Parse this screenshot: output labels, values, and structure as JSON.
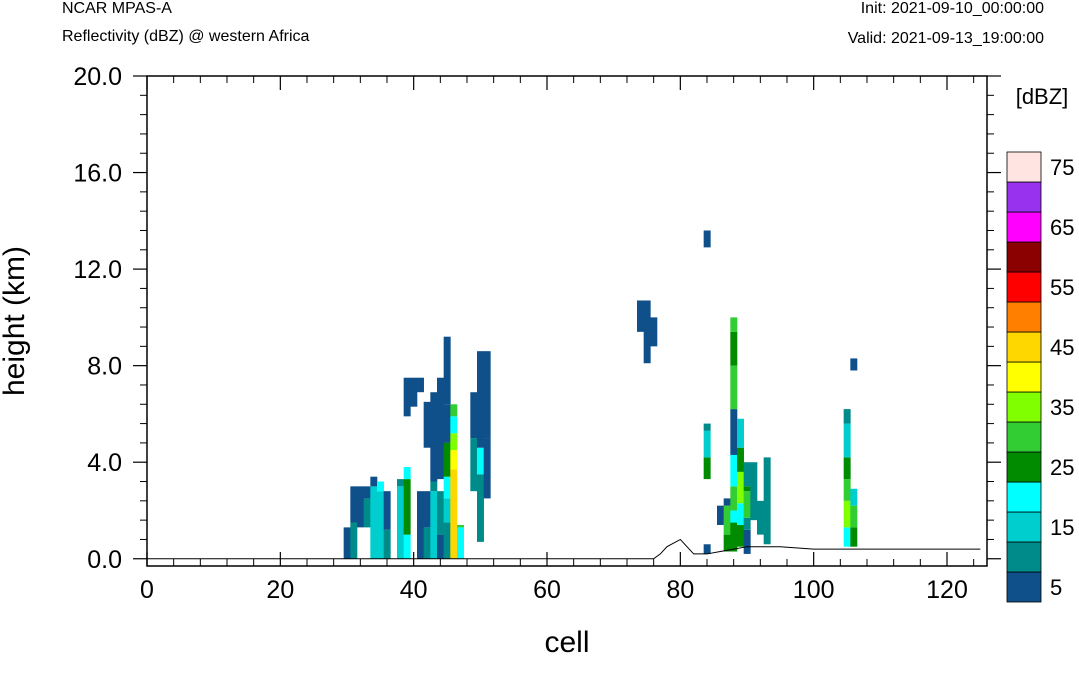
{
  "header": {
    "model": "NCAR MPAS-A",
    "field": "Reflectivity (dBZ) @ western Africa",
    "init": "Init: 2021-09-10_00:00:00",
    "valid": "Valid: 2021-09-13_19:00:00"
  },
  "chart_data": {
    "type": "heatmap",
    "title": "",
    "xlabel": "cell",
    "ylabel": "height (km)",
    "xlim": [
      0,
      126
    ],
    "ylim": [
      -0.3,
      20.0
    ],
    "x_ticks": [
      0,
      20,
      40,
      60,
      80,
      100,
      120
    ],
    "x_tick_labels": [
      "0",
      "20",
      "40",
      "60",
      "80",
      "100",
      "120"
    ],
    "y_ticks": [
      0,
      4,
      8,
      12,
      16,
      20
    ],
    "y_tick_labels": [
      "0.0",
      "4.0",
      "8.0",
      "12.0",
      "16.0",
      "20.0"
    ],
    "grid": false,
    "colorbar": {
      "units": "[dBZ]",
      "levels": [
        5,
        10,
        15,
        20,
        25,
        30,
        35,
        40,
        45,
        50,
        55,
        60,
        65,
        70,
        75
      ],
      "labels": [
        "5",
        "15",
        "25",
        "35",
        "45",
        "55",
        "65",
        "75"
      ],
      "colors": [
        "#0f4f8a",
        "#008b8b",
        "#00cdcd",
        "#00ffff",
        "#008b00",
        "#32cd32",
        "#7fff00",
        "#ffff00",
        "#ffd700",
        "#ff7f00",
        "#ff0000",
        "#8b0000",
        "#ff00ff",
        "#9932ee",
        "#ffe4e1"
      ]
    },
    "terrain": [
      [
        0,
        0
      ],
      [
        76,
        0
      ],
      [
        77,
        0.2
      ],
      [
        78,
        0.5
      ],
      [
        80,
        0.8
      ],
      [
        81,
        0.5
      ],
      [
        82,
        0.2
      ],
      [
        84,
        0.2
      ],
      [
        86,
        0.3
      ],
      [
        88,
        0.4
      ],
      [
        90,
        0.5
      ],
      [
        92,
        0.5
      ],
      [
        95,
        0.5
      ],
      [
        100,
        0.4
      ],
      [
        105,
        0.4
      ],
      [
        110,
        0.4
      ],
      [
        115,
        0.4
      ],
      [
        120,
        0.4
      ],
      [
        125,
        0.4
      ]
    ],
    "columns": [
      {
        "x": 30,
        "segments": [
          [
            0,
            1.3,
            5
          ]
        ]
      },
      {
        "x": 31,
        "segments": [
          [
            0,
            1.5,
            10
          ],
          [
            1.5,
            3.0,
            5
          ]
        ]
      },
      {
        "x": 32,
        "segments": [
          [
            1.3,
            3.0,
            5
          ]
        ]
      },
      {
        "x": 33,
        "segments": [
          [
            1.3,
            2.5,
            10
          ],
          [
            2.5,
            3.0,
            5
          ]
        ]
      },
      {
        "x": 34,
        "segments": [
          [
            0,
            3.0,
            15
          ],
          [
            3.0,
            3.4,
            5
          ]
        ]
      },
      {
        "x": 35,
        "segments": [
          [
            0,
            2.8,
            15
          ],
          [
            2.8,
            3.2,
            20
          ]
        ]
      },
      {
        "x": 36,
        "segments": [
          [
            0,
            1.2,
            10
          ],
          [
            1.2,
            2.8,
            5
          ]
        ]
      },
      {
        "x": 38,
        "segments": [
          [
            0,
            3.0,
            15
          ],
          [
            3.0,
            3.3,
            10
          ]
        ]
      },
      {
        "x": 39,
        "segments": [
          [
            0,
            1.0,
            20
          ],
          [
            1.0,
            3.3,
            25
          ],
          [
            3.3,
            3.8,
            20
          ],
          [
            5.9,
            7.5,
            5
          ]
        ]
      },
      {
        "x": 40,
        "segments": [
          [
            6.3,
            7.5,
            5
          ]
        ]
      },
      {
        "x": 41,
        "segments": [
          [
            0,
            2.8,
            5
          ],
          [
            6.9,
            7.5,
            5
          ]
        ]
      },
      {
        "x": 42,
        "segments": [
          [
            0,
            1.3,
            10
          ],
          [
            1.3,
            2.8,
            5
          ],
          [
            4.6,
            6.5,
            5
          ]
        ]
      },
      {
        "x": 43,
        "segments": [
          [
            0,
            2.8,
            15
          ],
          [
            2.8,
            3.2,
            10
          ],
          [
            3.2,
            6.9,
            5
          ]
        ]
      },
      {
        "x": 44,
        "segments": [
          [
            0,
            1.0,
            5
          ],
          [
            1.0,
            2.8,
            10
          ],
          [
            3.3,
            7.5,
            5
          ]
        ]
      },
      {
        "x": 45,
        "segments": [
          [
            0,
            1.5,
            10
          ],
          [
            1.5,
            2.5,
            15
          ],
          [
            2.5,
            3.4,
            20
          ],
          [
            3.4,
            4.8,
            25
          ],
          [
            4.8,
            6.4,
            5
          ],
          [
            6.4,
            9.2,
            5
          ]
        ]
      },
      {
        "x": 46,
        "segments": [
          [
            0,
            3.7,
            45
          ],
          [
            3.7,
            4.5,
            40
          ],
          [
            4.5,
            5.2,
            35
          ],
          [
            5.2,
            5.9,
            20
          ],
          [
            5.9,
            6.4,
            30
          ]
        ]
      },
      {
        "x": 47,
        "segments": [
          [
            0,
            1.3,
            20
          ],
          [
            1.3,
            1.4,
            30
          ]
        ]
      },
      {
        "x": 49,
        "segments": [
          [
            2.8,
            5.0,
            10
          ],
          [
            5.0,
            6.9,
            5
          ]
        ]
      },
      {
        "x": 50,
        "segments": [
          [
            0.7,
            3.5,
            10
          ],
          [
            3.5,
            4.6,
            20
          ],
          [
            4.6,
            8.6,
            5
          ]
        ]
      },
      {
        "x": 51,
        "segments": [
          [
            2.5,
            5.0,
            5
          ],
          [
            5.0,
            8.6,
            5
          ]
        ]
      },
      {
        "x": 74,
        "segments": [
          [
            9.4,
            10.7,
            5
          ]
        ]
      },
      {
        "x": 75,
        "segments": [
          [
            8.1,
            10.7,
            5
          ]
        ]
      },
      {
        "x": 76,
        "segments": [
          [
            8.8,
            10.0,
            5
          ]
        ]
      },
      {
        "x": 84,
        "segments": [
          [
            0.2,
            0.6,
            5
          ],
          [
            3.3,
            4.2,
            25
          ],
          [
            4.2,
            5.3,
            15
          ],
          [
            5.3,
            5.6,
            10
          ],
          [
            12.9,
            13.6,
            5
          ]
        ]
      },
      {
        "x": 86,
        "segments": [
          [
            1.4,
            2.2,
            5
          ]
        ]
      },
      {
        "x": 87,
        "segments": [
          [
            0.3,
            1.0,
            25
          ],
          [
            1.0,
            2.2,
            30
          ],
          [
            2.2,
            2.5,
            5
          ]
        ]
      },
      {
        "x": 88,
        "segments": [
          [
            0.3,
            1.5,
            25
          ],
          [
            1.5,
            2.0,
            20
          ],
          [
            2.0,
            3.0,
            30
          ],
          [
            3.0,
            4.3,
            20
          ],
          [
            4.3,
            6.2,
            5
          ],
          [
            6.2,
            8.0,
            30
          ],
          [
            8.0,
            9.4,
            25
          ],
          [
            9.4,
            10.0,
            30
          ]
        ]
      },
      {
        "x": 89,
        "segments": [
          [
            0.5,
            1.4,
            25
          ],
          [
            1.4,
            2.3,
            20
          ],
          [
            2.3,
            3.6,
            35
          ],
          [
            3.6,
            4.6,
            25
          ],
          [
            4.6,
            5.8,
            15
          ]
        ]
      },
      {
        "x": 90,
        "segments": [
          [
            0.2,
            1.2,
            5
          ],
          [
            1.2,
            1.7,
            10
          ],
          [
            1.7,
            2.8,
            30
          ],
          [
            2.8,
            3.0,
            25
          ],
          [
            3.0,
            4.0,
            10
          ]
        ]
      },
      {
        "x": 91,
        "segments": [
          [
            1.6,
            4.0,
            10
          ]
        ]
      },
      {
        "x": 92,
        "segments": [
          [
            1.0,
            2.4,
            10
          ]
        ]
      },
      {
        "x": 93,
        "segments": [
          [
            0.6,
            4.2,
            10
          ]
        ]
      },
      {
        "x": 105,
        "segments": [
          [
            0.5,
            1.3,
            20
          ],
          [
            1.3,
            2.4,
            35
          ],
          [
            2.4,
            3.3,
            30
          ],
          [
            3.3,
            4.2,
            25
          ],
          [
            4.2,
            5.6,
            15
          ],
          [
            5.6,
            6.2,
            10
          ]
        ]
      },
      {
        "x": 106,
        "segments": [
          [
            0.5,
            1.3,
            25
          ],
          [
            1.3,
            2.2,
            30
          ],
          [
            2.2,
            2.9,
            15
          ],
          [
            7.8,
            8.3,
            5
          ]
        ]
      }
    ]
  }
}
